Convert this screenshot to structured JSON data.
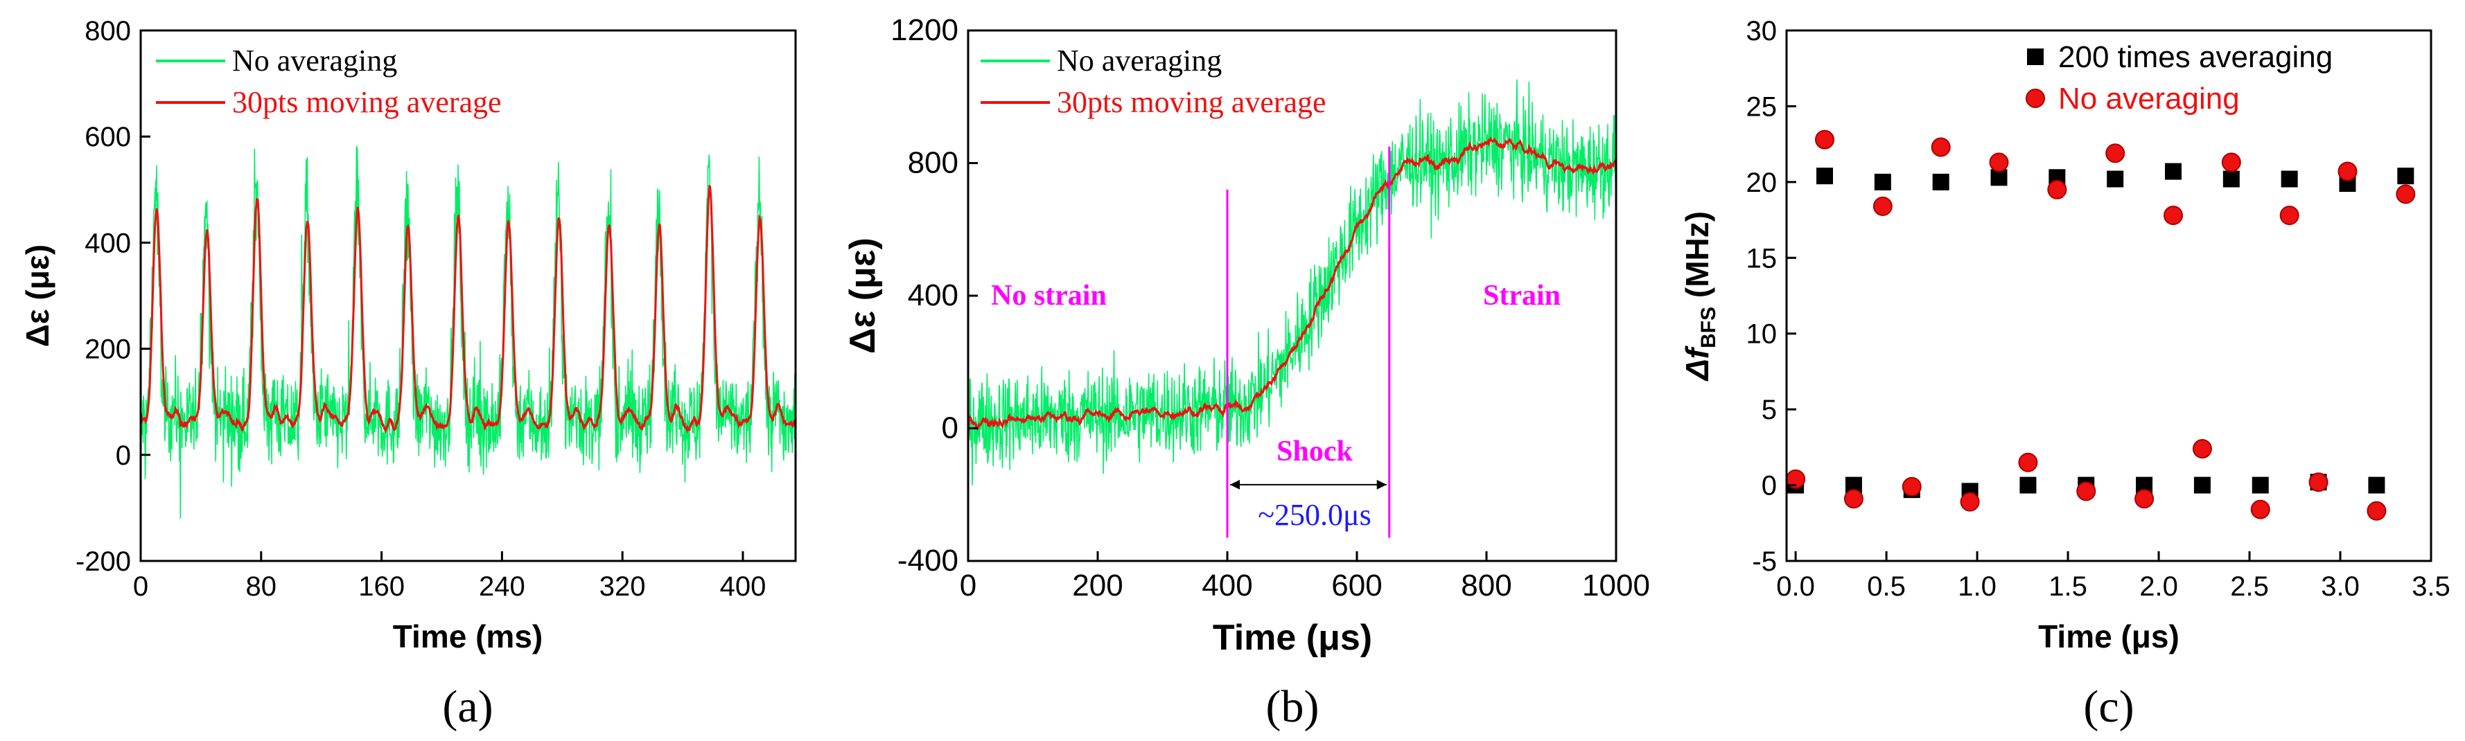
{
  "chart_data": [
    {
      "type": "line",
      "panel": "(a)",
      "xlabel": "Time (ms)",
      "ylabel": "Δε (με)",
      "xlim": [
        0,
        435
      ],
      "ylim": [
        -200,
        800
      ],
      "xticks": [
        0,
        80,
        160,
        240,
        320,
        400
      ],
      "yticks": [
        -200,
        0,
        200,
        400,
        600,
        800
      ],
      "legend": [
        "No averaging",
        "30pts moving average"
      ],
      "colors": {
        "raw": "#00ee66",
        "avg": "#ee1111"
      },
      "signal": {
        "period_ms": 33.4,
        "first_peak_ms": 10,
        "peak_heights": [
          500,
          460,
          520,
          470,
          490,
          460,
          480,
          470,
          470,
          460,
          470,
          550,
          480
        ],
        "baseline": 60,
        "noise_amplitude": 110
      }
    },
    {
      "type": "line",
      "panel": "(b)",
      "xlabel": "Time (μs)",
      "ylabel": "Δε (με)",
      "xlim": [
        0,
        1000
      ],
      "ylim": [
        -400,
        1200
      ],
      "xticks": [
        0,
        200,
        400,
        600,
        800,
        1000
      ],
      "yticks": [
        -400,
        0,
        400,
        800,
        1200
      ],
      "legend": [
        "No averaging",
        "30pts moving average"
      ],
      "colors": {
        "raw": "#00ee66",
        "avg": "#ee1111"
      },
      "signal": {
        "pre_level": 20,
        "rise_start_us": 400,
        "rise_end_us": 650,
        "post_level": 820,
        "noise_amplitude": 170
      },
      "annotations": {
        "no_strain": "No strain",
        "strain": "Strain",
        "shock": "Shock",
        "duration": "~250.0μs",
        "vline_x": [
          400,
          650
        ]
      }
    },
    {
      "type": "scatter",
      "panel": "(c)",
      "xlabel": "Time (μs)",
      "ylabel_main": "Δf",
      "ylabel_sub": "BFS",
      "ylabel_unit": " (MHz)",
      "xlim": [
        -0.05,
        3.5
      ],
      "ylim": [
        -5,
        30
      ],
      "xticks": [
        "0.0",
        "0.5",
        "1.0",
        "1.5",
        "2.0",
        "2.5",
        "3.0",
        "3.5"
      ],
      "yticks": [
        "-5",
        "0",
        "5",
        "10",
        "15",
        "20",
        "25",
        "30"
      ],
      "series": [
        {
          "name": "200 times averaging",
          "color": "#000000",
          "marker": "square",
          "x": [
            0.0,
            0.16,
            0.32,
            0.48,
            0.64,
            0.8,
            0.96,
            1.12,
            1.28,
            1.44,
            1.6,
            1.76,
            1.92,
            2.08,
            2.24,
            2.4,
            2.56,
            2.72,
            2.88,
            3.04,
            3.2,
            3.36
          ],
          "y": [
            0.0,
            20.4,
            0.0,
            20.0,
            -0.3,
            20.0,
            -0.4,
            20.3,
            0.0,
            20.3,
            0.0,
            20.2,
            0.0,
            20.7,
            0.0,
            20.2,
            0.0,
            20.2,
            0.2,
            19.9,
            0.0,
            20.4
          ]
        },
        {
          "name": "No averaging",
          "color": "#ee1111",
          "marker": "circle",
          "x": [
            0.0,
            0.16,
            0.32,
            0.48,
            0.64,
            0.8,
            0.96,
            1.12,
            1.28,
            1.44,
            1.6,
            1.76,
            1.92,
            2.08,
            2.24,
            2.4,
            2.56,
            2.72,
            2.88,
            3.04,
            3.2,
            3.36
          ],
          "y": [
            0.4,
            22.8,
            -0.9,
            18.4,
            -0.1,
            22.3,
            -1.1,
            21.3,
            1.5,
            19.5,
            -0.4,
            21.9,
            -0.9,
            17.8,
            2.4,
            21.3,
            -1.6,
            17.8,
            0.2,
            20.7,
            -1.7,
            19.2
          ]
        }
      ]
    }
  ]
}
